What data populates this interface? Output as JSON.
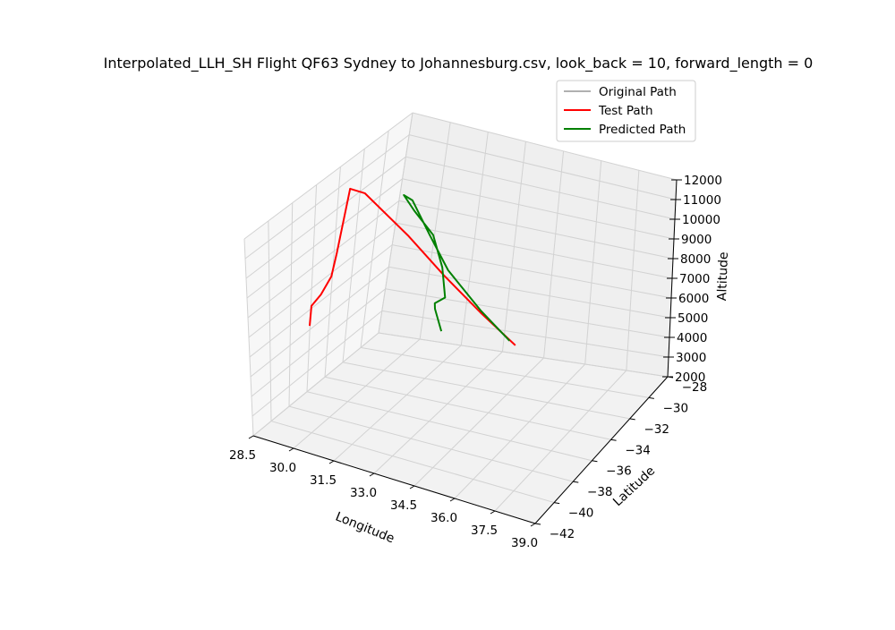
{
  "chart_data": {
    "type": "line",
    "projection": "3d",
    "title": "Interpolated_LLH_SH Flight QF63 Sydney to Johannesburg.csv, look_back = 10, forward_length = 0",
    "xlabel": "Longitude",
    "ylabel": "Latitude",
    "zlabel": "Altitude",
    "xticks": [
      "28.5",
      "30.0",
      "31.5",
      "33.0",
      "34.5",
      "36.0",
      "37.5",
      "39.0"
    ],
    "yticks": [
      "−42",
      "−40",
      "−38",
      "−36",
      "−34",
      "−32",
      "−30",
      "−28"
    ],
    "zticks": [
      "2000",
      "3000",
      "4000",
      "5000",
      "6000",
      "7000",
      "8000",
      "9000",
      "10000",
      "11000",
      "12000"
    ],
    "xlim": [
      28.5,
      39.0
    ],
    "ylim": [
      -42,
      -28
    ],
    "zlim": [
      2000,
      12000
    ],
    "grid": true,
    "legend_position": "upper right",
    "series": [
      {
        "name": "Original Path",
        "color": "#b0b0b0",
        "points": []
      },
      {
        "name": "Test Path",
        "color": "#ff0000",
        "points": [
          {
            "lon": 29.2,
            "lat": -39.4,
            "alt": 6400
          },
          {
            "lon": 29.1,
            "lat": -39.2,
            "alt": 7200
          },
          {
            "lon": 29.3,
            "lat": -38.9,
            "alt": 7700
          },
          {
            "lon": 29.5,
            "lat": -38.6,
            "alt": 8500
          },
          {
            "lon": 29.4,
            "lat": -38.0,
            "alt": 9300
          },
          {
            "lon": 29.4,
            "lat": -37.5,
            "alt": 12100
          },
          {
            "lon": 29.9,
            "lat": -37.2,
            "alt": 12000
          },
          {
            "lon": 31.4,
            "lat": -36.0,
            "alt": 10200
          },
          {
            "lon": 32.7,
            "lat": -35.2,
            "alt": 8500
          },
          {
            "lon": 34.0,
            "lat": -34.5,
            "alt": 6900
          },
          {
            "lon": 35.2,
            "lat": -33.8,
            "alt": 5400
          }
        ]
      },
      {
        "name": "Predicted Path",
        "color": "#008000",
        "points": [
          {
            "lon": 32.9,
            "lat": -35.4,
            "alt": 6000
          },
          {
            "lon": 32.6,
            "lat": -35.5,
            "alt": 7000
          },
          {
            "lon": 32.6,
            "lat": -35.6,
            "alt": 7300
          },
          {
            "lon": 32.9,
            "lat": -35.4,
            "alt": 7600
          },
          {
            "lon": 32.7,
            "lat": -35.5,
            "alt": 9000
          },
          {
            "lon": 32.3,
            "lat": -35.8,
            "alt": 10500
          },
          {
            "lon": 31.6,
            "lat": -36.2,
            "alt": 11500
          },
          {
            "lon": 31.2,
            "lat": -36.5,
            "alt": 12200
          },
          {
            "lon": 31.5,
            "lat": -36.3,
            "alt": 12000
          },
          {
            "lon": 32.2,
            "lat": -35.9,
            "alt": 10500
          },
          {
            "lon": 32.9,
            "lat": -35.4,
            "alt": 8900
          },
          {
            "lon": 34.0,
            "lat": -34.5,
            "alt": 7000
          },
          {
            "lon": 35.0,
            "lat": -33.9,
            "alt": 5600
          }
        ]
      }
    ]
  }
}
